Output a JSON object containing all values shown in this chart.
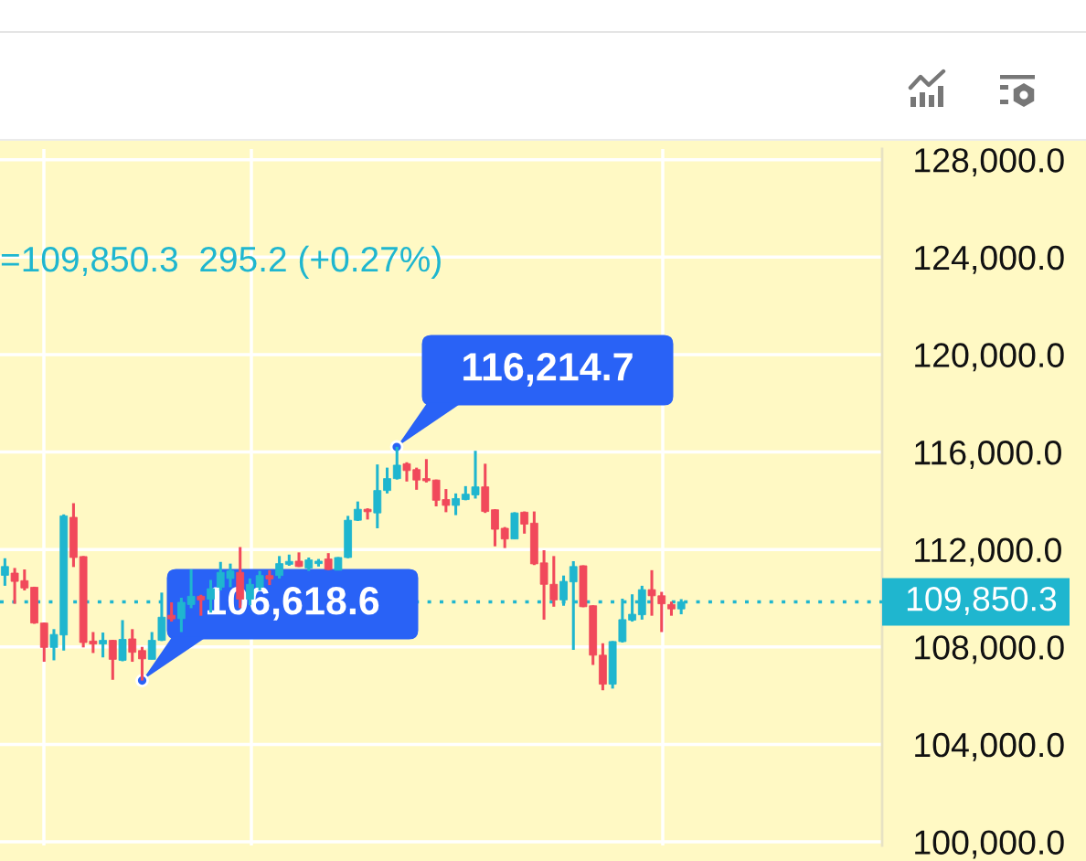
{
  "chart_data": {
    "type": "candlestick",
    "categories": [
      null,
      null,
      null,
      null,
      null,
      null,
      null,
      null,
      null,
      null,
      null,
      null,
      null,
      null,
      null,
      null,
      null,
      null,
      null,
      null,
      null,
      null,
      null,
      null,
      null,
      null,
      null,
      null,
      null,
      null,
      null,
      null,
      null,
      null,
      null,
      null,
      null,
      null,
      null,
      null,
      null,
      null,
      null,
      null,
      null,
      null,
      null,
      null,
      null,
      null,
      null,
      null,
      null,
      null,
      null,
      null,
      null,
      null,
      null,
      null,
      null,
      null,
      null,
      null,
      null,
      null,
      null,
      null,
      null,
      null,
      null,
      null,
      null,
      null,
      null,
      null,
      null,
      null,
      null,
      null,
      null,
      null,
      null,
      null,
      null,
      null,
      null,
      null,
      null,
      null
    ],
    "ohlc": [
      [
        110940,
        111640,
        110510,
        111300
      ],
      [
        111030,
        111240,
        109770,
        110690
      ],
      [
        110720,
        111180,
        110320,
        110420
      ],
      [
        110450,
        110470,
        108950,
        108980
      ],
      [
        108980,
        109000,
        107390,
        107980
      ],
      [
        107980,
        108730,
        107450,
        108510
      ],
      [
        108490,
        113440,
        107850,
        113380
      ],
      [
        113320,
        113900,
        111280,
        111670
      ],
      [
        111710,
        111730,
        107980,
        108180
      ],
      [
        108240,
        108610,
        107750,
        108120
      ],
      [
        108120,
        108590,
        107570,
        108270
      ],
      [
        108270,
        108290,
        106650,
        107490
      ],
      [
        107450,
        109100,
        107410,
        108310
      ],
      [
        108330,
        108730,
        107390,
        107780
      ],
      [
        107850,
        108000,
        106618.6,
        107510
      ],
      [
        107490,
        108610,
        107490,
        108270
      ],
      [
        108270,
        110230,
        108240,
        109220
      ],
      [
        109300,
        109830,
        109040,
        109150
      ],
      [
        109160,
        110020,
        108610,
        109830
      ],
      [
        109740,
        111180,
        109590,
        110080
      ],
      [
        110080,
        110140,
        109280,
        109930
      ],
      [
        109960,
        110750,
        109410,
        110390
      ],
      [
        110450,
        111490,
        110320,
        111060
      ],
      [
        110810,
        111420,
        110450,
        111120
      ],
      [
        111060,
        112100,
        109590,
        109960
      ],
      [
        109960,
        110810,
        109710,
        110570
      ],
      [
        110450,
        111120,
        110320,
        110930
      ],
      [
        110930,
        111150,
        110540,
        110790
      ],
      [
        110930,
        111730,
        110810,
        111420
      ],
      [
        111390,
        111790,
        111330,
        111510
      ],
      [
        111520,
        111880,
        111280,
        111300
      ],
      [
        111240,
        111670,
        111120,
        111570
      ],
      [
        111420,
        111610,
        111300,
        111520
      ],
      [
        111610,
        111850,
        111150,
        111180
      ],
      [
        111150,
        111690,
        111150,
        111670
      ],
      [
        111670,
        113380,
        111640,
        113200
      ],
      [
        113200,
        113970,
        113170,
        113650
      ],
      [
        113650,
        113690,
        113230,
        113550
      ],
      [
        113500,
        115490,
        112870,
        114420
      ],
      [
        114420,
        115360,
        114300,
        114910
      ],
      [
        114910,
        116214.7,
        114870,
        115460
      ],
      [
        115520,
        115580,
        114790,
        115240
      ],
      [
        115280,
        115360,
        114450,
        114850
      ],
      [
        114910,
        115710,
        114750,
        114820
      ],
      [
        114850,
        114870,
        113770,
        114020
      ],
      [
        114050,
        114480,
        113530,
        113810
      ],
      [
        113810,
        114300,
        113410,
        114090
      ],
      [
        114050,
        114600,
        114020,
        114270
      ],
      [
        114240,
        116050,
        114090,
        114570
      ],
      [
        114570,
        115520,
        113500,
        113560
      ],
      [
        113630,
        113650,
        112130,
        112830
      ],
      [
        112870,
        112920,
        112060,
        112430
      ],
      [
        112430,
        113530,
        112430,
        113500
      ],
      [
        113530,
        113560,
        112650,
        113040
      ],
      [
        113080,
        113560,
        111360,
        111410
      ],
      [
        111450,
        111970,
        109120,
        110570
      ],
      [
        110570,
        111730,
        109650,
        109930
      ],
      [
        109930,
        110930,
        109690,
        110690
      ],
      [
        110670,
        111520,
        107880,
        111300
      ],
      [
        111330,
        111350,
        109630,
        109650
      ],
      [
        109690,
        109710,
        107260,
        107660
      ],
      [
        107660,
        108150,
        106220,
        106470
      ],
      [
        106470,
        108240,
        106290,
        108220
      ],
      [
        108220,
        109980,
        108180,
        109120
      ],
      [
        109100,
        110160,
        109040,
        109340
      ],
      [
        109320,
        110510,
        109120,
        110350
      ],
      [
        110350,
        111150,
        109280,
        110100
      ],
      [
        110100,
        110260,
        108610,
        109770
      ],
      [
        109740,
        109860,
        109280,
        109560
      ],
      [
        109560,
        109960,
        109340,
        109850.3
      ],
      null,
      null,
      null,
      null,
      null,
      null,
      null,
      null,
      null,
      null,
      null,
      null,
      null,
      null,
      null,
      null,
      null,
      null,
      null,
      null
    ],
    "colors": [
      "#1fb6cf",
      "#f1495b",
      "#f1495b",
      "#f1495b",
      "#f1495b",
      "#1fb6cf",
      "#1fb6cf",
      "#f1495b",
      "#f1495b",
      "#f1495b",
      "#1fb6cf",
      "#f1495b",
      "#1fb6cf",
      "#f1495b",
      "#f1495b",
      "#1fb6cf",
      "#1fb6cf",
      "#f1495b",
      "#1fb6cf",
      "#1fb6cf",
      "#f1495b",
      "#1fb6cf",
      "#1fb6cf",
      "#1fb6cf",
      "#f1495b",
      "#1fb6cf",
      "#1fb6cf",
      "#f1495b",
      "#1fb6cf",
      "#1fb6cf",
      "#f1495b",
      "#1fb6cf",
      "#1fb6cf",
      "#f1495b",
      "#1fb6cf",
      "#1fb6cf",
      "#1fb6cf",
      "#f1495b",
      "#1fb6cf",
      "#1fb6cf",
      "#1fb6cf",
      "#f1495b",
      "#f1495b",
      "#f1495b",
      "#f1495b",
      "#f1495b",
      "#1fb6cf",
      "#1fb6cf",
      "#1fb6cf",
      "#f1495b",
      "#f1495b",
      "#f1495b",
      "#1fb6cf",
      "#f1495b",
      "#f1495b",
      "#f1495b",
      "#f1495b",
      "#1fb6cf",
      "#1fb6cf",
      "#f1495b",
      "#f1495b",
      "#f1495b",
      "#1fb6cf",
      "#1fb6cf",
      "#1fb6cf",
      "#1fb6cf",
      "#f1495b",
      "#f1495b",
      "#f1495b",
      "#1fb6cf",
      null,
      null,
      null,
      null,
      null,
      null,
      null,
      null,
      null,
      null,
      null,
      null,
      null,
      null,
      null,
      null,
      null,
      null,
      null,
      null
    ],
    "ylim": [
      99850,
      128440
    ],
    "yticks": [
      {
        "value": 100000,
        "label": "100,000.0"
      },
      {
        "value": 104000,
        "label": "104,000.0"
      },
      {
        "value": 108000,
        "label": "108,000.0"
      },
      {
        "value": 112000,
        "label": "112,000.0"
      },
      {
        "value": 116000,
        "label": "116,000.0"
      },
      {
        "value": 120000,
        "label": "120,000.0"
      },
      {
        "value": 124000,
        "label": "124,000.0"
      },
      {
        "value": 128000,
        "label": "128,000.0"
      }
    ],
    "tick_labels": "y",
    "grid": true,
    "ref_lines": [
      {
        "axis": "y",
        "value": 109850.3,
        "label": "109,850.3",
        "color": "#1fb6cf",
        "line_style": "dotted"
      }
    ],
    "annotations": [
      "=109,850.3  295.2 (+0.27%)",
      "116,214.7",
      "106,618.6"
    ]
  }
}
